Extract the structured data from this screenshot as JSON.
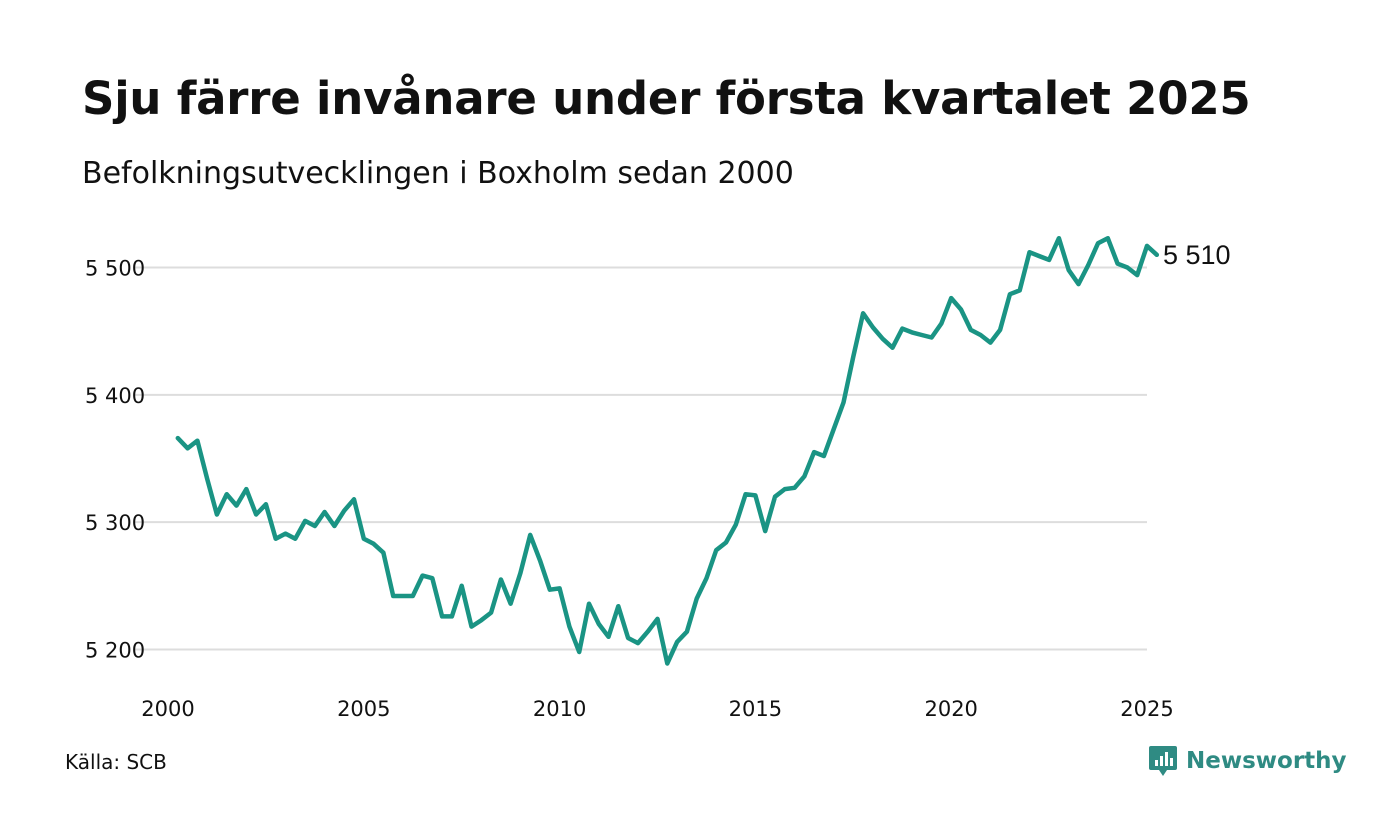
{
  "title": "Sju färre invånare under första kvartalet 2025",
  "subtitle": "Befolkningsutvecklingen i Boxholm sedan 2000",
  "source": "Källa: SCB",
  "brand": "Newsworthy",
  "colors": {
    "line": "#1a9484",
    "grid": "#dddddd",
    "brand": "#2f8b83"
  },
  "chart_data": {
    "type": "line",
    "title": "Sju färre invånare under första kvartalet 2025",
    "subtitle": "Befolkningsutvecklingen i Boxholm sedan 2000",
    "xlabel": "",
    "ylabel": "",
    "xlim": [
      2000,
      2025
    ],
    "ylim": [
      5190,
      5530
    ],
    "x_ticks": [
      2000,
      2005,
      2010,
      2015,
      2020,
      2025
    ],
    "x_tick_labels": [
      "2000",
      "2005",
      "2010",
      "2015",
      "2020",
      "2025"
    ],
    "y_ticks": [
      5200,
      5300,
      5400,
      5500
    ],
    "y_tick_labels": [
      "5 200",
      "5 300",
      "5 400",
      "5 500"
    ],
    "grid": "horizontal",
    "end_label": "5 510",
    "series": [
      {
        "x": [
          2000.25,
          2000.5,
          2000.75,
          2001.0,
          2001.25,
          2001.5,
          2001.75,
          2002.0,
          2002.25,
          2002.5,
          2002.75,
          2003.0,
          2003.25,
          2003.5,
          2003.75,
          2004.0,
          2004.25,
          2004.5,
          2004.75,
          2005.0,
          2005.25,
          2005.5,
          2005.75,
          2006.0,
          2006.25,
          2006.5,
          2006.75,
          2007.0,
          2007.25,
          2007.5,
          2007.75,
          2008.0,
          2008.25,
          2008.5,
          2008.75,
          2009.0,
          2009.25,
          2009.5,
          2009.75,
          2010.0,
          2010.25,
          2010.5,
          2010.75,
          2011.0,
          2011.25,
          2011.5,
          2011.75,
          2012.0,
          2012.25,
          2012.5,
          2012.75,
          2013.0,
          2013.25,
          2013.5,
          2013.75,
          2014.0,
          2014.25,
          2014.5,
          2014.75,
          2015.0,
          2015.25,
          2015.5,
          2015.75,
          2016.0,
          2016.25,
          2016.5,
          2016.75,
          2017.0,
          2017.25,
          2017.5,
          2017.75,
          2018.0,
          2018.25,
          2018.5,
          2018.75,
          2019.0,
          2019.25,
          2019.5,
          2019.75,
          2020.0,
          2020.25,
          2020.5,
          2020.75,
          2021.0,
          2021.25,
          2021.5,
          2021.75,
          2022.0,
          2022.25,
          2022.5,
          2022.75,
          2023.0,
          2023.25,
          2023.5,
          2023.75,
          2024.0,
          2024.25,
          2024.5,
          2024.75,
          2025.0,
          2025.25
        ],
        "values": [
          5366,
          5358,
          5364,
          5334,
          5306,
          5322,
          5313,
          5326,
          5306,
          5314,
          5287,
          5291,
          5287,
          5301,
          5297,
          5308,
          5297,
          5309,
          5318,
          5287,
          5283,
          5276,
          5242,
          5242,
          5242,
          5258,
          5256,
          5226,
          5226,
          5250,
          5218,
          5223,
          5229,
          5255,
          5236,
          5260,
          5290,
          5270,
          5247,
          5248,
          5218,
          5198,
          5236,
          5220,
          5210,
          5234,
          5209,
          5205,
          5214,
          5224,
          5189,
          5206,
          5214,
          5240,
          5256,
          5278,
          5284,
          5298,
          5322,
          5321,
          5293,
          5320,
          5326,
          5327,
          5336,
          5355,
          5352,
          5373,
          5394,
          5430,
          5464,
          5453,
          5444,
          5437,
          5452,
          5449,
          5447,
          5445,
          5456,
          5476,
          5467,
          5451,
          5447,
          5441,
          5451,
          5479,
          5482,
          5512,
          5509,
          5506,
          5523,
          5498,
          5487,
          5502,
          5519,
          5523,
          5503,
          5500,
          5494,
          5517,
          5510
        ]
      }
    ]
  }
}
